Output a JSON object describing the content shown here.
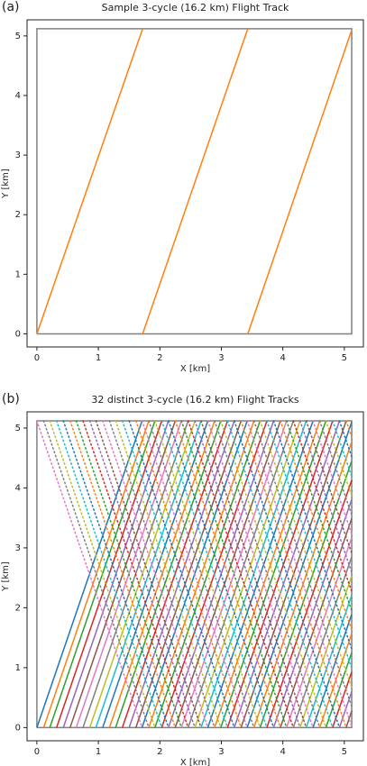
{
  "chart_data": [
    {
      "type": "line",
      "panel_label": "(a)",
      "title": "Sample 3-cycle (16.2 km) Flight Track",
      "x_label": "X [km]",
      "y_label": "Y [km]",
      "xlim": [
        -0.16,
        5.31
      ],
      "ylim": [
        -0.22,
        5.27
      ],
      "xticks": [
        0,
        1,
        2,
        3,
        4,
        5
      ],
      "yticks": [
        0,
        1,
        2,
        3,
        4,
        5
      ],
      "series": [
        {
          "color": "#808080",
          "linestyle": "solid",
          "x": [
            0,
            5.12,
            5.12,
            0,
            0
          ],
          "y": [
            0,
            0,
            5.12,
            5.12,
            0
          ]
        },
        {
          "color": "#ff7f0e",
          "linestyle": "solid",
          "x": [
            0,
            1.72,
            null,
            1.72,
            3.43,
            null,
            3.43,
            5.12
          ],
          "y": [
            0,
            5.12,
            null,
            0,
            5.12,
            null,
            0,
            5.1
          ]
        }
      ]
    },
    {
      "type": "line",
      "panel_label": "(b)",
      "title": "32 distinct 3-cycle (16.2 km) Flight Tracks",
      "x_label": "X [km]",
      "y_label": "Y [km]",
      "xlim": [
        -0.16,
        5.31
      ],
      "ylim": [
        -0.22,
        5.27
      ],
      "xticks": [
        0,
        1,
        2,
        3,
        4,
        5
      ],
      "yticks": [
        0,
        1,
        2,
        3,
        4,
        5
      ],
      "series": [
        {
          "color": "#808080",
          "linestyle": "solid",
          "x": [
            0,
            5.12,
            5.12,
            0,
            0
          ],
          "y": [
            0,
            0,
            5.12,
            5.12,
            0
          ]
        },
        {
          "color": "#1f77b4",
          "linestyle": "solid",
          "x": [
            0,
            1.71,
            null,
            1.71,
            3.42,
            null,
            3.42,
            5.12
          ],
          "y": [
            0,
            5.12,
            null,
            0,
            5.12,
            null,
            0,
            5.1
          ]
        },
        {
          "color": "#ff7f0e",
          "linestyle": "solid",
          "x": [
            0.11,
            1.82,
            null,
            1.82,
            3.53,
            null,
            3.53,
            5.12
          ],
          "y": [
            0,
            5.12,
            null,
            0,
            5.12,
            null,
            0,
            4.77
          ]
        },
        {
          "color": "#2ca02c",
          "linestyle": "solid",
          "x": [
            0.21,
            1.92,
            null,
            1.92,
            3.63,
            null,
            3.63,
            5.12
          ],
          "y": [
            0,
            5.12,
            null,
            0,
            5.12,
            null,
            0,
            4.45
          ]
        },
        {
          "color": "#d62728",
          "linestyle": "solid",
          "x": [
            0.32,
            2.03,
            null,
            2.03,
            3.74,
            null,
            3.74,
            5.12
          ],
          "y": [
            0,
            5.12,
            null,
            0,
            5.12,
            null,
            0,
            4.13
          ]
        },
        {
          "color": "#9467bd",
          "linestyle": "solid",
          "x": [
            0.43,
            2.14,
            null,
            2.14,
            3.85,
            null,
            3.85,
            5.12
          ],
          "y": [
            0,
            5.12,
            null,
            0,
            5.12,
            null,
            0,
            3.81
          ]
        },
        {
          "color": "#8c564b",
          "linestyle": "solid",
          "x": [
            0.54,
            2.25,
            null,
            2.25,
            3.96,
            null,
            3.96,
            5.12
          ],
          "y": [
            0,
            5.12,
            null,
            0,
            5.12,
            null,
            0,
            3.49
          ]
        },
        {
          "color": "#e377c2",
          "linestyle": "solid",
          "x": [
            0.64,
            2.35,
            null,
            2.35,
            4.06,
            null,
            4.06,
            5.12
          ],
          "y": [
            0,
            5.12,
            null,
            0,
            5.12,
            null,
            0,
            3.17
          ]
        },
        {
          "color": "#7f7f7f",
          "linestyle": "solid",
          "x": [
            0.75,
            2.46,
            null,
            2.46,
            4.17,
            null,
            4.17,
            5.12
          ],
          "y": [
            0,
            5.12,
            null,
            0,
            5.12,
            null,
            0,
            2.85
          ]
        },
        {
          "color": "#bcbd22",
          "linestyle": "solid",
          "x": [
            0.86,
            2.57,
            null,
            2.57,
            4.28,
            null,
            4.28,
            5.12
          ],
          "y": [
            0,
            5.12,
            null,
            0,
            5.12,
            null,
            0,
            2.53
          ]
        },
        {
          "color": "#17becf",
          "linestyle": "solid",
          "x": [
            0.96,
            2.67,
            null,
            2.67,
            4.38,
            null,
            4.38,
            5.12
          ],
          "y": [
            0,
            5.12,
            null,
            0,
            5.12,
            null,
            0,
            2.21
          ]
        },
        {
          "color": "#1f77b4",
          "linestyle": "solid",
          "x": [
            1.07,
            2.78,
            null,
            2.78,
            4.49,
            null,
            4.49,
            5.12
          ],
          "y": [
            0,
            5.12,
            null,
            0,
            5.12,
            null,
            0,
            1.89
          ]
        },
        {
          "color": "#ff7f0e",
          "linestyle": "solid",
          "x": [
            1.18,
            2.89,
            null,
            2.89,
            4.6,
            null,
            4.6,
            5.12
          ],
          "y": [
            0,
            5.12,
            null,
            0,
            5.12,
            null,
            0,
            1.57
          ]
        },
        {
          "color": "#2ca02c",
          "linestyle": "solid",
          "x": [
            1.28,
            2.99,
            null,
            2.99,
            4.7,
            null,
            4.7,
            5.12
          ],
          "y": [
            0,
            5.12,
            null,
            0,
            5.12,
            null,
            0,
            1.25
          ]
        },
        {
          "color": "#d62728",
          "linestyle": "solid",
          "x": [
            1.39,
            3.1,
            null,
            3.1,
            4.81,
            null,
            4.81,
            5.12
          ],
          "y": [
            0,
            5.12,
            null,
            0,
            5.12,
            null,
            0,
            0.93
          ]
        },
        {
          "color": "#9467bd",
          "linestyle": "solid",
          "x": [
            1.5,
            3.21,
            null,
            3.21,
            4.92,
            null,
            4.92,
            5.12
          ],
          "y": [
            0,
            5.12,
            null,
            0,
            5.12,
            null,
            0,
            0.6
          ]
        },
        {
          "color": "#8c564b",
          "linestyle": "solid",
          "x": [
            1.61,
            3.32,
            null,
            3.32,
            5.03,
            null,
            5.03,
            5.12
          ],
          "y": [
            0,
            5.12,
            null,
            0,
            5.12,
            null,
            0,
            0.28
          ]
        },
        {
          "color": "#e377c2",
          "linestyle": "dotted",
          "x": [
            0,
            1.71,
            null,
            1.71,
            3.42,
            null,
            3.42,
            5.12
          ],
          "y": [
            5.12,
            0,
            null,
            5.12,
            0,
            null,
            5.12,
            0.02
          ]
        },
        {
          "color": "#7f7f7f",
          "linestyle": "dotted",
          "x": [
            0.11,
            1.82,
            null,
            1.82,
            3.53,
            null,
            3.53,
            5.12
          ],
          "y": [
            5.12,
            0,
            null,
            5.12,
            0,
            null,
            5.12,
            0.35
          ]
        },
        {
          "color": "#bcbd22",
          "linestyle": "dotted",
          "x": [
            0.21,
            1.92,
            null,
            1.92,
            3.63,
            null,
            3.63,
            5.12
          ],
          "y": [
            5.12,
            0,
            null,
            5.12,
            0,
            null,
            5.12,
            0.67
          ]
        },
        {
          "color": "#17becf",
          "linestyle": "dotted",
          "x": [
            0.32,
            2.03,
            null,
            2.03,
            3.74,
            null,
            3.74,
            5.12
          ],
          "y": [
            5.12,
            0,
            null,
            5.12,
            0,
            null,
            5.12,
            0.99
          ]
        },
        {
          "color": "#1f77b4",
          "linestyle": "dotted",
          "x": [
            0.43,
            2.14,
            null,
            2.14,
            3.85,
            null,
            3.85,
            5.12
          ],
          "y": [
            5.12,
            0,
            null,
            5.12,
            0,
            null,
            5.12,
            1.31
          ]
        },
        {
          "color": "#ff7f0e",
          "linestyle": "dotted",
          "x": [
            0.54,
            2.25,
            null,
            2.25,
            3.96,
            null,
            3.96,
            5.12
          ],
          "y": [
            5.12,
            0,
            null,
            5.12,
            0,
            null,
            5.12,
            1.63
          ]
        },
        {
          "color": "#2ca02c",
          "linestyle": "dotted",
          "x": [
            0.64,
            2.35,
            null,
            2.35,
            4.06,
            null,
            4.06,
            5.12
          ],
          "y": [
            5.12,
            0,
            null,
            5.12,
            0,
            null,
            5.12,
            1.95
          ]
        },
        {
          "color": "#d62728",
          "linestyle": "dotted",
          "x": [
            0.75,
            2.46,
            null,
            2.46,
            4.17,
            null,
            4.17,
            5.12
          ],
          "y": [
            5.12,
            0,
            null,
            5.12,
            0,
            null,
            5.12,
            2.27
          ]
        },
        {
          "color": "#9467bd",
          "linestyle": "dotted",
          "x": [
            0.86,
            2.57,
            null,
            2.57,
            4.28,
            null,
            4.28,
            5.12
          ],
          "y": [
            5.12,
            0,
            null,
            5.12,
            0,
            null,
            5.12,
            2.59
          ]
        },
        {
          "color": "#8c564b",
          "linestyle": "dotted",
          "x": [
            0.96,
            2.67,
            null,
            2.67,
            4.38,
            null,
            4.38,
            5.12
          ],
          "y": [
            5.12,
            0,
            null,
            5.12,
            0,
            null,
            5.12,
            2.91
          ]
        },
        {
          "color": "#e377c2",
          "linestyle": "dotted",
          "x": [
            1.07,
            2.78,
            null,
            2.78,
            4.49,
            null,
            4.49,
            5.12
          ],
          "y": [
            5.12,
            0,
            null,
            5.12,
            0,
            null,
            5.12,
            3.23
          ]
        },
        {
          "color": "#7f7f7f",
          "linestyle": "dotted",
          "x": [
            1.18,
            2.89,
            null,
            2.89,
            4.6,
            null,
            4.6,
            5.12
          ],
          "y": [
            5.12,
            0,
            null,
            5.12,
            0,
            null,
            5.12,
            3.55
          ]
        },
        {
          "color": "#bcbd22",
          "linestyle": "dotted",
          "x": [
            1.28,
            2.99,
            null,
            2.99,
            4.7,
            null,
            4.7,
            5.12
          ],
          "y": [
            5.12,
            0,
            null,
            5.12,
            0,
            null,
            5.12,
            3.87
          ]
        },
        {
          "color": "#17becf",
          "linestyle": "dotted",
          "x": [
            1.39,
            3.1,
            null,
            3.1,
            4.81,
            null,
            4.81,
            5.12
          ],
          "y": [
            5.12,
            0,
            null,
            5.12,
            0,
            null,
            5.12,
            4.19
          ]
        },
        {
          "color": "#1f77b4",
          "linestyle": "dotted",
          "x": [
            1.5,
            3.21,
            null,
            3.21,
            4.92,
            null,
            4.92,
            5.12
          ],
          "y": [
            5.12,
            0,
            null,
            5.12,
            0,
            null,
            5.12,
            4.52
          ]
        },
        {
          "color": "#ff7f0e",
          "linestyle": "dotted",
          "x": [
            1.61,
            3.32,
            null,
            3.32,
            5.03,
            null,
            5.03,
            5.12
          ],
          "y": [
            5.12,
            0,
            null,
            5.12,
            0,
            null,
            5.12,
            4.84
          ]
        }
      ]
    }
  ]
}
